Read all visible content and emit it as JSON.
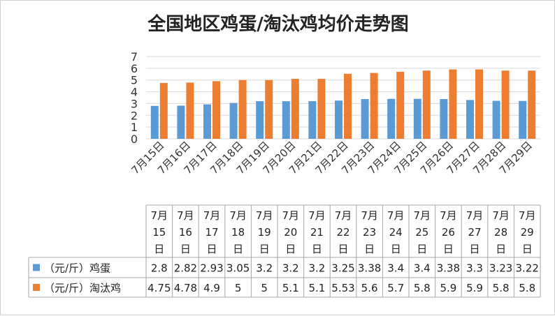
{
  "chart_data": {
    "type": "bar",
    "title": "全国地区鸡蛋/淘汰鸡均价走势图",
    "categories": [
      "7月15日",
      "7月16日",
      "7月17日",
      "7月18日",
      "7月19日",
      "7月20日",
      "7月21日",
      "7月22日",
      "7月23日",
      "7月24日",
      "7月25日",
      "7月26日",
      "7月27日",
      "7月28日",
      "7月29日"
    ],
    "table_headers": [
      [
        "7月",
        "15",
        "日"
      ],
      [
        "7月",
        "16",
        "日"
      ],
      [
        "7月",
        "17",
        "日"
      ],
      [
        "7月",
        "18",
        "日"
      ],
      [
        "7月",
        "19",
        "日"
      ],
      [
        "7月",
        "20",
        "日"
      ],
      [
        "7月",
        "21",
        "日"
      ],
      [
        "7月",
        "22",
        "日"
      ],
      [
        "7月",
        "23",
        "日"
      ],
      [
        "7月",
        "24",
        "日"
      ],
      [
        "7月",
        "25",
        "日"
      ],
      [
        "7月",
        "26",
        "日"
      ],
      [
        "7月",
        "27",
        "日"
      ],
      [
        "7月",
        "28",
        "日"
      ],
      [
        "7月",
        "29",
        "日"
      ]
    ],
    "series": [
      {
        "name": "（元/斤）鸡蛋",
        "color": "#5b9bd5",
        "values": [
          2.8,
          2.82,
          2.93,
          3.05,
          3.2,
          3.2,
          3.2,
          3.25,
          3.38,
          3.4,
          3.4,
          3.38,
          3.3,
          3.23,
          3.22
        ]
      },
      {
        "name": "（元/斤）淘汰鸡",
        "color": "#ed7d31",
        "values": [
          4.75,
          4.78,
          4.9,
          5,
          5,
          5.1,
          5.1,
          5.53,
          5.6,
          5.7,
          5.8,
          5.9,
          5.9,
          5.8,
          5.8
        ]
      }
    ],
    "yticks": [
      0,
      1,
      2,
      3,
      4,
      5,
      6,
      7
    ],
    "ylim": [
      0,
      7
    ],
    "grid": true,
    "legend": "bottom-table"
  }
}
